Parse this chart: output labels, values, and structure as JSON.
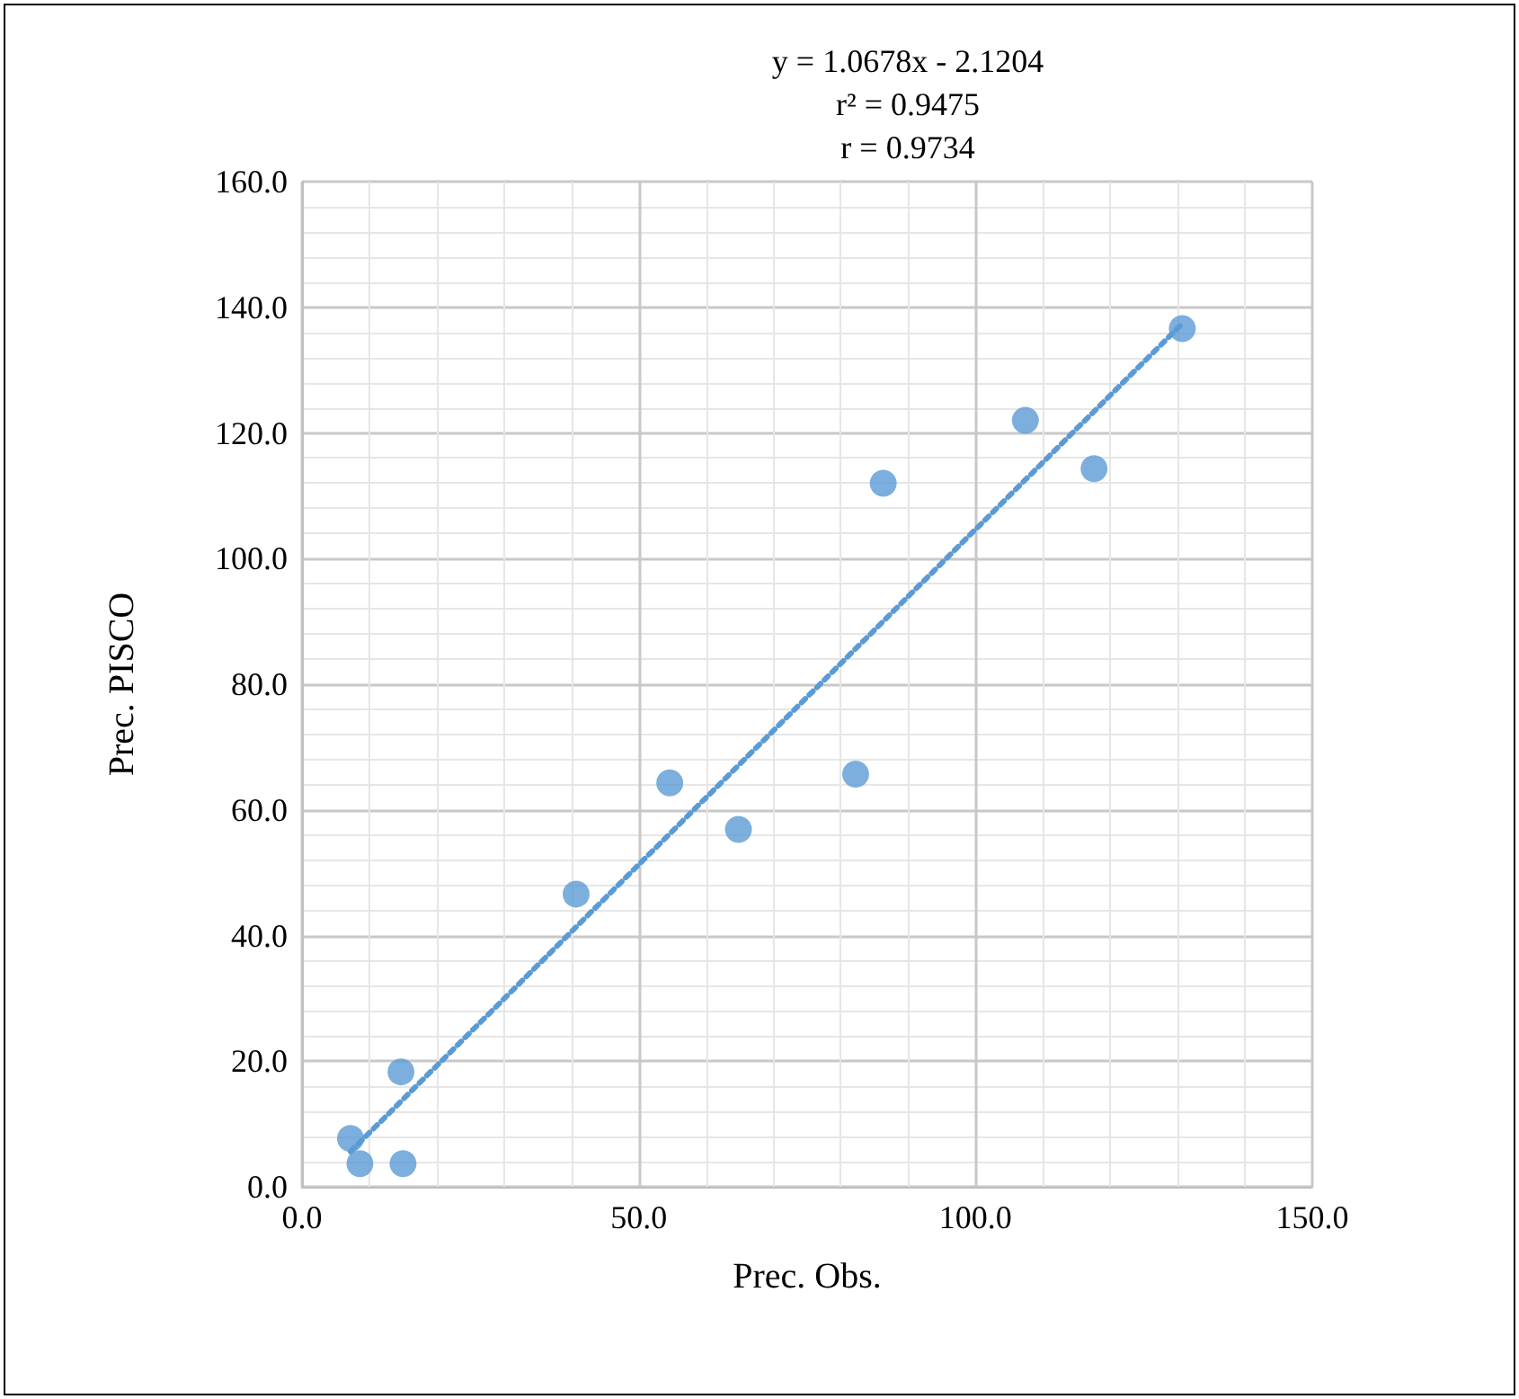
{
  "chart_data": {
    "type": "scatter",
    "xlabel": "Prec. Obs.",
    "ylabel": "Prec. PISCO",
    "annotations": [
      "y = 1.0678x - 2.1204",
      "r² = 0.9475",
      "r = 0.9734"
    ],
    "series": [
      {
        "type": "scatter",
        "marker": "circle",
        "color": "#5b9bd5",
        "x": [
          7.2,
          8.6,
          14.7,
          15.0,
          40.7,
          54.6,
          64.8,
          82.2,
          86.3,
          107.4,
          117.6,
          130.7
        ],
        "values": [
          7.7,
          3.7,
          18.3,
          3.7,
          46.6,
          64.3,
          56.9,
          65.7,
          112,
          122,
          114.3,
          136.6
        ]
      },
      {
        "type": "line",
        "color": "#5b9bd5",
        "line_style": "dotted",
        "x": [
          7.2,
          130.7
        ],
        "values": [
          5.6,
          137.4
        ]
      }
    ],
    "xlim": [
      0,
      150
    ],
    "xticks": [
      {
        "value": 0,
        "label": "0.0"
      },
      {
        "value": 50,
        "label": "50.0"
      },
      {
        "value": 100,
        "label": "100.0"
      },
      {
        "value": 150,
        "label": "150.0"
      }
    ],
    "ylim": [
      0,
      160
    ],
    "yticks": [
      {
        "value": 0,
        "label": "0.0"
      },
      {
        "value": 20,
        "label": "20.0"
      },
      {
        "value": 40,
        "label": "40.0"
      },
      {
        "value": 60,
        "label": "60.0"
      },
      {
        "value": 80,
        "label": "80.0"
      },
      {
        "value": 100,
        "label": "100.0"
      },
      {
        "value": 120,
        "label": "120.0"
      },
      {
        "value": 140,
        "label": "140.0"
      },
      {
        "value": 160,
        "label": "160.0"
      }
    ],
    "grid": true
  }
}
